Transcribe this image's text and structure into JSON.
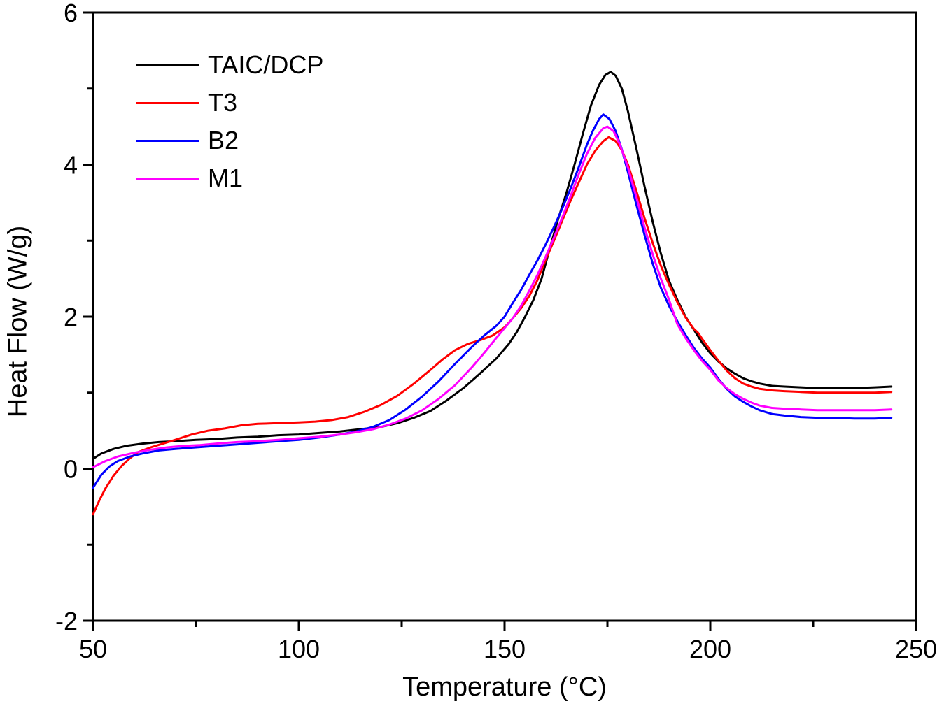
{
  "figure": {
    "background": "#ffffff"
  },
  "chart_data": {
    "type": "line",
    "title": "",
    "xlabel": "Temperature (°C)",
    "ylabel": "Heat Flow (W/g)",
    "xlim": [
      50,
      250
    ],
    "ylim": [
      -2,
      6
    ],
    "x_ticks": [
      50,
      100,
      150,
      200,
      250
    ],
    "x_minor_ticks": [
      75,
      125,
      175,
      225
    ],
    "y_ticks": [
      -2,
      0,
      2,
      4,
      6
    ],
    "y_minor_ticks": [
      -1,
      1,
      3,
      5
    ],
    "grid": false,
    "legend_position": "top-left",
    "axis_color": "#000000",
    "series": [
      {
        "name": "TAIC/DCP",
        "color": "#000000",
        "peak": {
          "temperature": 175.8,
          "heat_flow": 5.22
        },
        "points": [
          [
            50,
            0.13
          ],
          [
            52,
            0.2
          ],
          [
            55,
            0.26
          ],
          [
            58,
            0.3
          ],
          [
            62,
            0.33
          ],
          [
            66,
            0.35
          ],
          [
            70,
            0.36
          ],
          [
            75,
            0.38
          ],
          [
            80,
            0.39
          ],
          [
            85,
            0.41
          ],
          [
            90,
            0.42
          ],
          [
            95,
            0.44
          ],
          [
            100,
            0.45
          ],
          [
            105,
            0.47
          ],
          [
            110,
            0.49
          ],
          [
            115,
            0.52
          ],
          [
            120,
            0.55
          ],
          [
            124,
            0.6
          ],
          [
            128,
            0.67
          ],
          [
            132,
            0.76
          ],
          [
            136,
            0.9
          ],
          [
            140,
            1.06
          ],
          [
            144,
            1.25
          ],
          [
            148,
            1.45
          ],
          [
            151,
            1.64
          ],
          [
            153,
            1.8
          ],
          [
            155,
            2.0
          ],
          [
            157,
            2.22
          ],
          [
            159,
            2.5
          ],
          [
            161,
            2.9
          ],
          [
            163,
            3.28
          ],
          [
            165,
            3.62
          ],
          [
            167,
            4.0
          ],
          [
            169,
            4.4
          ],
          [
            171,
            4.78
          ],
          [
            173,
            5.05
          ],
          [
            174.5,
            5.18
          ],
          [
            175.8,
            5.22
          ],
          [
            177,
            5.17
          ],
          [
            178.5,
            5.0
          ],
          [
            180,
            4.7
          ],
          [
            182,
            4.22
          ],
          [
            184,
            3.72
          ],
          [
            186,
            3.25
          ],
          [
            188,
            2.83
          ],
          [
            190,
            2.47
          ],
          [
            192,
            2.22
          ],
          [
            194,
            2.0
          ],
          [
            196,
            1.83
          ],
          [
            198,
            1.66
          ],
          [
            200,
            1.52
          ],
          [
            202,
            1.41
          ],
          [
            204,
            1.32
          ],
          [
            206,
            1.25
          ],
          [
            208,
            1.19
          ],
          [
            210,
            1.15
          ],
          [
            212,
            1.12
          ],
          [
            215,
            1.09
          ],
          [
            218,
            1.08
          ],
          [
            222,
            1.07
          ],
          [
            226,
            1.06
          ],
          [
            230,
            1.06
          ],
          [
            235,
            1.06
          ],
          [
            240,
            1.07
          ],
          [
            244,
            1.08
          ]
        ]
      },
      {
        "name": "T3",
        "color": "#ff0000",
        "peak": {
          "temperature": 175.3,
          "heat_flow": 4.36
        },
        "points": [
          [
            50,
            -0.6
          ],
          [
            51.5,
            -0.42
          ],
          [
            53,
            -0.26
          ],
          [
            55,
            -0.09
          ],
          [
            57,
            0.04
          ],
          [
            59,
            0.14
          ],
          [
            61,
            0.22
          ],
          [
            64,
            0.28
          ],
          [
            67,
            0.33
          ],
          [
            70,
            0.38
          ],
          [
            74,
            0.45
          ],
          [
            78,
            0.5
          ],
          [
            82,
            0.53
          ],
          [
            86,
            0.57
          ],
          [
            90,
            0.59
          ],
          [
            95,
            0.6
          ],
          [
            100,
            0.61
          ],
          [
            104,
            0.62
          ],
          [
            108,
            0.64
          ],
          [
            112,
            0.68
          ],
          [
            116,
            0.75
          ],
          [
            120,
            0.84
          ],
          [
            124,
            0.96
          ],
          [
            128,
            1.12
          ],
          [
            132,
            1.3
          ],
          [
            135,
            1.44
          ],
          [
            138,
            1.56
          ],
          [
            141,
            1.64
          ],
          [
            144,
            1.69
          ],
          [
            147,
            1.75
          ],
          [
            150,
            1.86
          ],
          [
            152,
            1.98
          ],
          [
            154,
            2.11
          ],
          [
            156,
            2.27
          ],
          [
            158,
            2.48
          ],
          [
            160,
            2.75
          ],
          [
            162,
            3.0
          ],
          [
            164,
            3.26
          ],
          [
            166,
            3.52
          ],
          [
            168,
            3.76
          ],
          [
            170,
            4.0
          ],
          [
            172,
            4.18
          ],
          [
            174,
            4.31
          ],
          [
            175.3,
            4.36
          ],
          [
            177,
            4.31
          ],
          [
            178.5,
            4.19
          ],
          [
            180,
            4.0
          ],
          [
            182,
            3.66
          ],
          [
            184,
            3.3
          ],
          [
            186,
            2.97
          ],
          [
            188,
            2.67
          ],
          [
            190,
            2.42
          ],
          [
            192,
            2.19
          ],
          [
            194,
            1.99
          ],
          [
            196,
            1.84
          ],
          [
            197,
            1.79
          ],
          [
            198,
            1.71
          ],
          [
            200,
            1.56
          ],
          [
            202,
            1.42
          ],
          [
            204,
            1.29
          ],
          [
            206,
            1.19
          ],
          [
            208,
            1.12
          ],
          [
            210,
            1.08
          ],
          [
            212,
            1.05
          ],
          [
            215,
            1.03
          ],
          [
            218,
            1.02
          ],
          [
            222,
            1.01
          ],
          [
            226,
            1.0
          ],
          [
            230,
            1.0
          ],
          [
            235,
            1.0
          ],
          [
            240,
            1.0
          ],
          [
            244,
            1.01
          ]
        ]
      },
      {
        "name": "B2",
        "color": "#0000ff",
        "peak": {
          "temperature": 174.0,
          "heat_flow": 4.66
        },
        "points": [
          [
            50,
            -0.25
          ],
          [
            52,
            -0.08
          ],
          [
            54,
            0.03
          ],
          [
            56,
            0.1
          ],
          [
            59,
            0.16
          ],
          [
            62,
            0.2
          ],
          [
            66,
            0.24
          ],
          [
            70,
            0.26
          ],
          [
            75,
            0.28
          ],
          [
            80,
            0.3
          ],
          [
            85,
            0.32
          ],
          [
            90,
            0.34
          ],
          [
            95,
            0.36
          ],
          [
            100,
            0.38
          ],
          [
            105,
            0.41
          ],
          [
            110,
            0.45
          ],
          [
            114,
            0.49
          ],
          [
            118,
            0.55
          ],
          [
            122,
            0.64
          ],
          [
            126,
            0.78
          ],
          [
            130,
            0.95
          ],
          [
            134,
            1.15
          ],
          [
            138,
            1.38
          ],
          [
            142,
            1.6
          ],
          [
            145,
            1.75
          ],
          [
            148,
            1.88
          ],
          [
            150,
            2.0
          ],
          [
            152,
            2.18
          ],
          [
            154,
            2.35
          ],
          [
            156,
            2.55
          ],
          [
            158,
            2.74
          ],
          [
            160,
            2.95
          ],
          [
            162,
            3.18
          ],
          [
            164,
            3.42
          ],
          [
            166,
            3.68
          ],
          [
            168,
            3.96
          ],
          [
            170,
            4.26
          ],
          [
            171.5,
            4.45
          ],
          [
            173,
            4.6
          ],
          [
            174,
            4.66
          ],
          [
            175.5,
            4.6
          ],
          [
            177,
            4.44
          ],
          [
            178.5,
            4.2
          ],
          [
            180,
            3.9
          ],
          [
            182,
            3.48
          ],
          [
            184,
            3.08
          ],
          [
            186,
            2.7
          ],
          [
            188,
            2.38
          ],
          [
            190,
            2.14
          ],
          [
            192,
            1.94
          ],
          [
            194,
            1.76
          ],
          [
            196,
            1.59
          ],
          [
            198,
            1.45
          ],
          [
            200,
            1.33
          ],
          [
            202,
            1.18
          ],
          [
            204,
            1.05
          ],
          [
            206,
            0.95
          ],
          [
            208,
            0.88
          ],
          [
            210,
            0.82
          ],
          [
            212,
            0.77
          ],
          [
            215,
            0.72
          ],
          [
            218,
            0.7
          ],
          [
            222,
            0.68
          ],
          [
            226,
            0.67
          ],
          [
            230,
            0.67
          ],
          [
            235,
            0.66
          ],
          [
            240,
            0.66
          ],
          [
            244,
            0.67
          ]
        ]
      },
      {
        "name": "M1",
        "color": "#ff00ff",
        "peak": {
          "temperature": 175.0,
          "heat_flow": 4.5
        },
        "points": [
          [
            50,
            0.02
          ],
          [
            53,
            0.1
          ],
          [
            56,
            0.16
          ],
          [
            60,
            0.21
          ],
          [
            64,
            0.25
          ],
          [
            68,
            0.28
          ],
          [
            72,
            0.3
          ],
          [
            76,
            0.31
          ],
          [
            80,
            0.33
          ],
          [
            85,
            0.35
          ],
          [
            90,
            0.36
          ],
          [
            95,
            0.38
          ],
          [
            100,
            0.4
          ],
          [
            105,
            0.42
          ],
          [
            110,
            0.45
          ],
          [
            114,
            0.48
          ],
          [
            118,
            0.52
          ],
          [
            122,
            0.58
          ],
          [
            126,
            0.66
          ],
          [
            130,
            0.77
          ],
          [
            134,
            0.92
          ],
          [
            138,
            1.1
          ],
          [
            142,
            1.33
          ],
          [
            145,
            1.52
          ],
          [
            148,
            1.72
          ],
          [
            150,
            1.85
          ],
          [
            152,
            1.98
          ],
          [
            154,
            2.14
          ],
          [
            156,
            2.34
          ],
          [
            158,
            2.55
          ],
          [
            160,
            2.79
          ],
          [
            162,
            3.04
          ],
          [
            164,
            3.3
          ],
          [
            166,
            3.58
          ],
          [
            168,
            3.87
          ],
          [
            170,
            4.14
          ],
          [
            172,
            4.35
          ],
          [
            174,
            4.48
          ],
          [
            175,
            4.5
          ],
          [
            176.5,
            4.44
          ],
          [
            178,
            4.27
          ],
          [
            180,
            3.96
          ],
          [
            182,
            3.58
          ],
          [
            184,
            3.18
          ],
          [
            186,
            2.82
          ],
          [
            188,
            2.5
          ],
          [
            190,
            2.22
          ],
          [
            192,
            1.9
          ],
          [
            194,
            1.72
          ],
          [
            196,
            1.56
          ],
          [
            198,
            1.42
          ],
          [
            200,
            1.3
          ],
          [
            202,
            1.16
          ],
          [
            204,
            1.06
          ],
          [
            206,
            0.98
          ],
          [
            208,
            0.92
          ],
          [
            210,
            0.87
          ],
          [
            212,
            0.83
          ],
          [
            215,
            0.8
          ],
          [
            218,
            0.79
          ],
          [
            222,
            0.78
          ],
          [
            226,
            0.77
          ],
          [
            230,
            0.77
          ],
          [
            235,
            0.77
          ],
          [
            240,
            0.77
          ],
          [
            244,
            0.78
          ]
        ]
      }
    ]
  }
}
